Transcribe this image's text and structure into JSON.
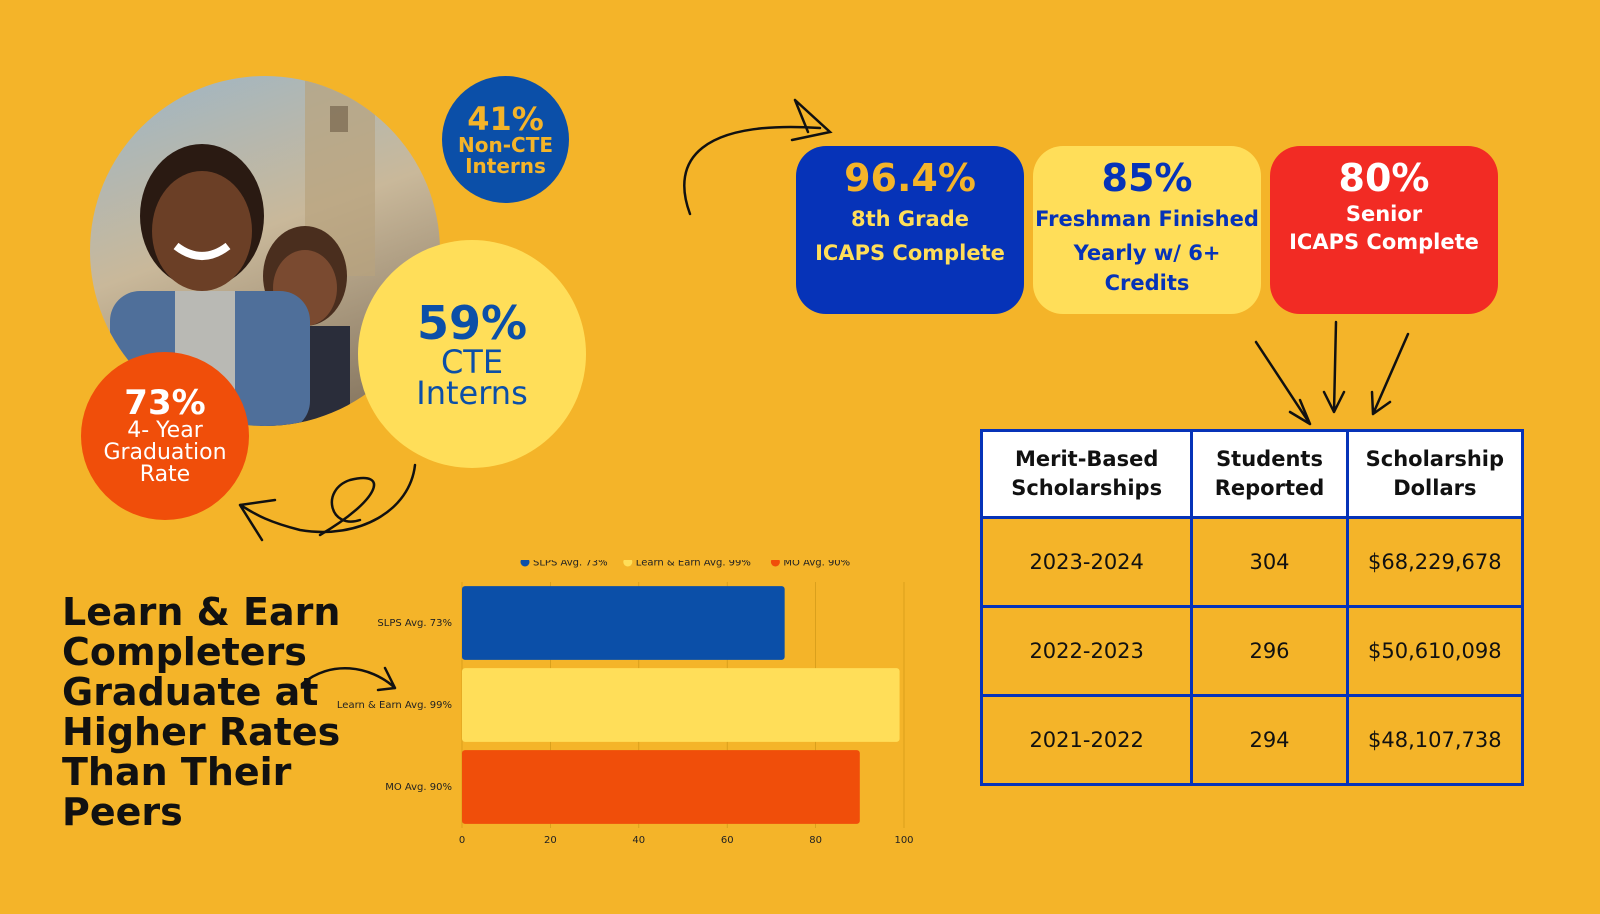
{
  "stats": {
    "non_cte": {
      "value": "41%",
      "line1": "Non-CTE",
      "line2": "Interns"
    },
    "cte": {
      "value": "59%",
      "line1": "CTE",
      "line2": "Interns"
    },
    "grad": {
      "value": "73%",
      "line1": "4- Year",
      "line2": "Graduation",
      "line3": "Rate"
    }
  },
  "cards": [
    {
      "value": "96.4%",
      "line1": "8th Grade",
      "line2": "ICAPS Complete"
    },
    {
      "value": "85%",
      "line1": "Freshman Finished",
      "line2": "Yearly w/ 6+ Credits"
    },
    {
      "value": "80%",
      "line1": "Senior",
      "line2": "ICAPS Complete"
    }
  ],
  "headline": "Learn & Earn Completers Graduate at Higher Rates Than Their Peers",
  "table": {
    "headers": [
      "Merit-Based Scholarships",
      "Students Reported",
      "Scholarship Dollars"
    ],
    "rows": [
      [
        "2023-2024",
        "304",
        "$68,229,678"
      ],
      [
        "2022-2023",
        "296",
        "$50,610,098"
      ],
      [
        "2021-2022",
        "294",
        "$48,107,738"
      ]
    ]
  },
  "colors": {
    "background": "#F4B429",
    "blue": "#0B4FA8",
    "yellow": "#FFDE59",
    "orange": "#F04E0A",
    "red": "#F22B24"
  },
  "chart_data": {
    "type": "bar",
    "orientation": "horizontal",
    "categories": [
      "SLPS Avg. 73%",
      "Learn & Earn Avg. 99%",
      "MO Avg. 90%"
    ],
    "values": [
      73,
      99,
      90
    ],
    "colors": [
      "#0B4FA8",
      "#FFDE59",
      "#F04E0A"
    ],
    "legend": [
      "SLPS Avg. 73%",
      "Learn & Earn Avg. 99%",
      "MO Avg. 90%"
    ],
    "legend_position": "top",
    "xlim": [
      0,
      100
    ],
    "xticks": [
      "0",
      "20",
      "40",
      "60",
      "80",
      "100"
    ],
    "grid": true
  }
}
